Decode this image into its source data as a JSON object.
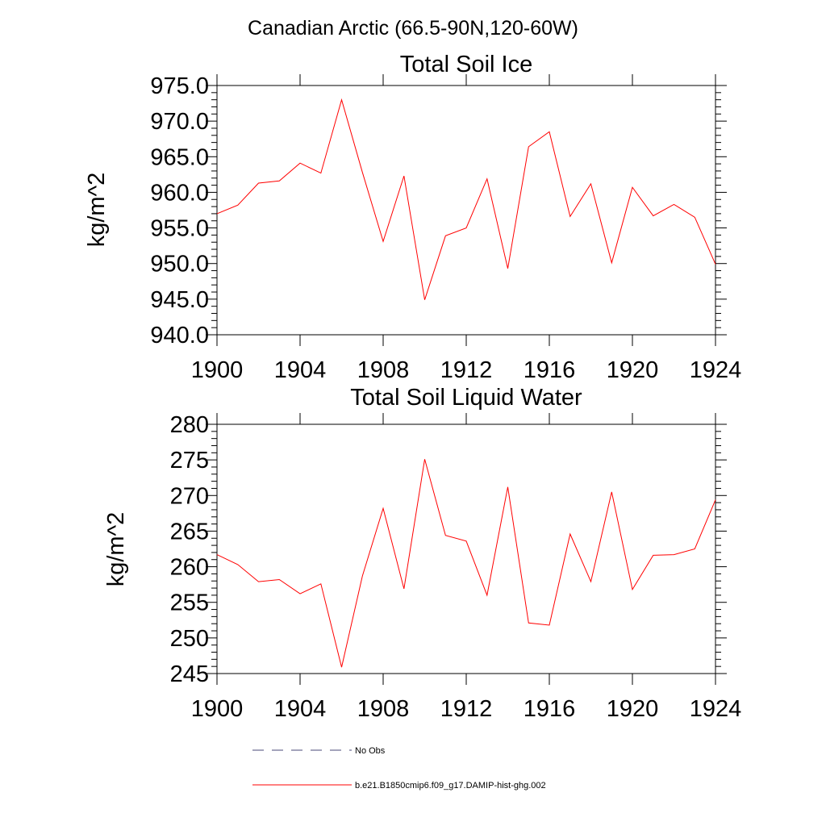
{
  "figure": {
    "suptitle": "Canadian Arctic (66.5-90N,120-60W)"
  },
  "colors": {
    "model": "#ff0000",
    "obs": "#4a4a7a",
    "axes": "#000000"
  },
  "legend": [
    {
      "label": "No Obs",
      "style": "dashed",
      "color_key": "obs"
    },
    {
      "label": "b.e21.B1850cmip6.f09_g17.DAMIP-hist-ghg.002",
      "style": "solid",
      "color_key": "model"
    }
  ],
  "chart_data": [
    {
      "type": "line",
      "title": "Total Soil Ice",
      "xlabel": "",
      "ylabel": "kg/m^2",
      "xlim": [
        1900,
        1924
      ],
      "ylim": [
        940,
        975
      ],
      "xticks": [
        1900,
        1904,
        1908,
        1912,
        1916,
        1920,
        1924
      ],
      "yticks": [
        940,
        945,
        950,
        955,
        960,
        965,
        970,
        975
      ],
      "ytick_labels": [
        "940.0",
        "945.0",
        "950.0",
        "955.0",
        "960.0",
        "965.0",
        "970.0",
        "975.0"
      ],
      "grid": false,
      "x": [
        1900,
        1901,
        1902,
        1903,
        1904,
        1905,
        1906,
        1907,
        1908,
        1909,
        1910,
        1911,
        1912,
        1913,
        1914,
        1915,
        1916,
        1917,
        1918,
        1919,
        1920,
        1921,
        1922,
        1923,
        1924
      ],
      "series": [
        {
          "color_key": "model",
          "values": [
            957.0,
            958.2,
            961.3,
            961.6,
            964.1,
            962.7,
            973.0,
            962.8,
            953.1,
            962.3,
            944.9,
            953.9,
            955.0,
            961.9,
            949.3,
            966.4,
            968.5,
            956.6,
            961.2,
            950.1,
            960.7,
            956.7,
            958.3,
            956.5,
            949.9
          ]
        }
      ]
    },
    {
      "type": "line",
      "title": "Total Soil Liquid Water",
      "xlabel": "",
      "ylabel": "kg/m^2",
      "xlim": [
        1900,
        1924
      ],
      "ylim": [
        245,
        280
      ],
      "xticks": [
        1900,
        1904,
        1908,
        1912,
        1916,
        1920,
        1924
      ],
      "yticks": [
        245,
        250,
        255,
        260,
        265,
        270,
        275,
        280
      ],
      "ytick_labels": [
        "245",
        "250",
        "255",
        "260",
        "265",
        "270",
        "275",
        "280"
      ],
      "grid": false,
      "x": [
        1900,
        1901,
        1902,
        1903,
        1904,
        1905,
        1906,
        1907,
        1908,
        1909,
        1910,
        1911,
        1912,
        1913,
        1914,
        1915,
        1916,
        1917,
        1918,
        1919,
        1920,
        1921,
        1922,
        1923,
        1924
      ],
      "series": [
        {
          "color_key": "model",
          "values": [
            261.7,
            260.3,
            257.9,
            258.2,
            256.2,
            257.6,
            245.9,
            258.7,
            268.2,
            256.9,
            275.1,
            264.4,
            263.6,
            256.0,
            271.2,
            252.1,
            251.8,
            264.6,
            257.9,
            270.5,
            256.8,
            261.6,
            261.7,
            262.5,
            269.4
          ]
        }
      ]
    }
  ]
}
